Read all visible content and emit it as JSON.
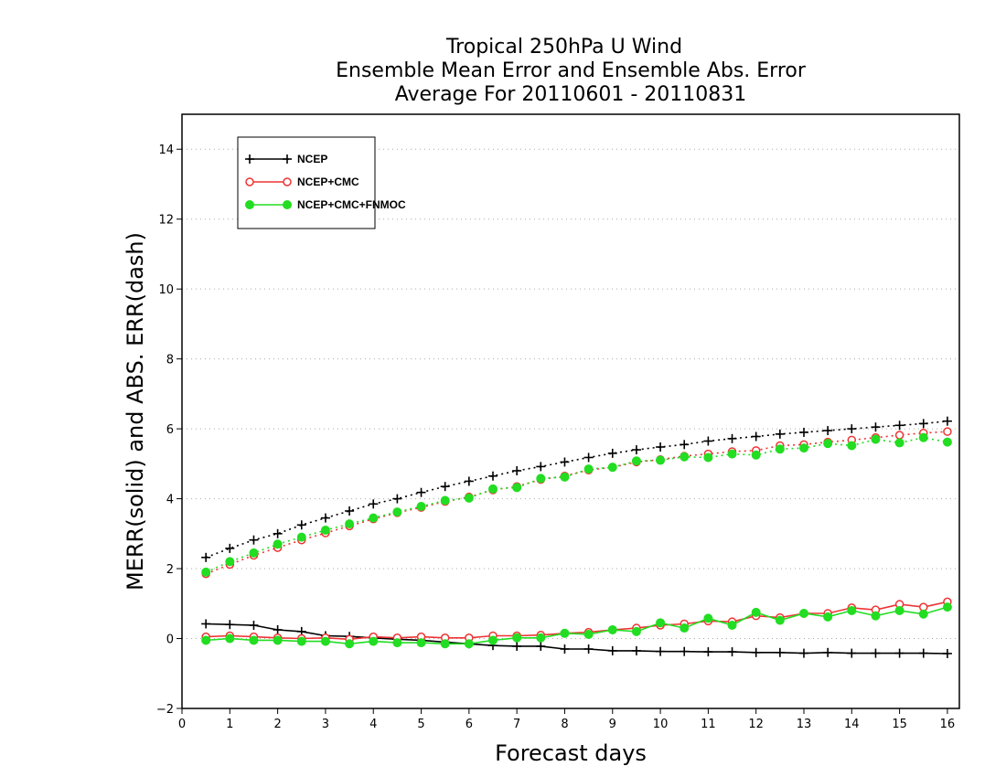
{
  "chart_data": {
    "type": "line",
    "title": [
      "Tropical 250hPa U Wind",
      "Ensemble Mean Error and Ensemble Abs. Error",
      "Average For 20110601 - 20110831"
    ],
    "xlabel": "Forecast days",
    "ylabel": "MERR(solid) and ABS. ERR(dash)",
    "xlim": [
      0,
      16.25
    ],
    "ylim": [
      -2,
      15
    ],
    "xticks": [
      0,
      1,
      2,
      3,
      4,
      5,
      6,
      7,
      8,
      9,
      10,
      11,
      12,
      13,
      14,
      15,
      16
    ],
    "yticks": [
      -2,
      0,
      2,
      4,
      6,
      8,
      10,
      12,
      14
    ],
    "ygrid": true,
    "legend_position": "top-left",
    "x": [
      0.5,
      1.0,
      1.5,
      2.0,
      2.5,
      3.0,
      3.5,
      4.0,
      4.5,
      5.0,
      5.5,
      6.0,
      6.5,
      7.0,
      7.5,
      8.0,
      8.5,
      9.0,
      9.5,
      10.0,
      10.5,
      11.0,
      11.5,
      12.0,
      12.5,
      13.0,
      13.5,
      14.0,
      14.5,
      15.0,
      15.5,
      16.0
    ],
    "series": [
      {
        "name": "NCEP",
        "color": "#000000",
        "marker": "plus",
        "merr": [
          0.42,
          0.4,
          0.38,
          0.25,
          0.2,
          0.08,
          0.06,
          0.02,
          -0.02,
          -0.05,
          -0.1,
          -0.15,
          -0.2,
          -0.22,
          -0.22,
          -0.3,
          -0.3,
          -0.35,
          -0.35,
          -0.37,
          -0.37,
          -0.38,
          -0.38,
          -0.4,
          -0.4,
          -0.42,
          -0.4,
          -0.42,
          -0.42,
          -0.42,
          -0.42,
          -0.43
        ],
        "abs_err": [
          2.32,
          2.58,
          2.82,
          3.0,
          3.25,
          3.45,
          3.65,
          3.85,
          4.0,
          4.18,
          4.35,
          4.5,
          4.65,
          4.8,
          4.92,
          5.05,
          5.18,
          5.3,
          5.4,
          5.48,
          5.55,
          5.65,
          5.72,
          5.78,
          5.85,
          5.9,
          5.95,
          6.0,
          6.05,
          6.1,
          6.15,
          6.22
        ]
      },
      {
        "name": "NCEP+CMC",
        "color": "#ee3333",
        "marker": "open-circle",
        "merr": [
          0.05,
          0.08,
          0.05,
          0.02,
          0.0,
          0.02,
          -0.02,
          0.05,
          0.02,
          0.05,
          0.02,
          0.02,
          0.08,
          0.08,
          0.1,
          0.15,
          0.18,
          0.25,
          0.3,
          0.38,
          0.42,
          0.5,
          0.48,
          0.65,
          0.6,
          0.72,
          0.72,
          0.88,
          0.82,
          0.98,
          0.9,
          1.05
        ],
        "abs_err": [
          1.85,
          2.12,
          2.38,
          2.6,
          2.82,
          3.02,
          3.22,
          3.42,
          3.6,
          3.75,
          3.92,
          4.05,
          4.25,
          4.35,
          4.55,
          4.65,
          4.82,
          4.9,
          5.05,
          5.12,
          5.22,
          5.28,
          5.35,
          5.38,
          5.52,
          5.55,
          5.62,
          5.68,
          5.75,
          5.82,
          5.88,
          5.92
        ]
      },
      {
        "name": "NCEP+CMC+FNMOC",
        "color": "#22dd22",
        "marker": "filled-circle",
        "merr": [
          -0.05,
          0.0,
          -0.05,
          -0.05,
          -0.08,
          -0.08,
          -0.15,
          -0.08,
          -0.12,
          -0.12,
          -0.15,
          -0.15,
          -0.05,
          0.02,
          0.02,
          0.15,
          0.12,
          0.25,
          0.2,
          0.45,
          0.3,
          0.58,
          0.38,
          0.75,
          0.52,
          0.72,
          0.62,
          0.8,
          0.65,
          0.8,
          0.7,
          0.9
        ],
        "abs_err": [
          1.9,
          2.2,
          2.45,
          2.7,
          2.9,
          3.1,
          3.28,
          3.45,
          3.62,
          3.78,
          3.95,
          4.02,
          4.28,
          4.32,
          4.58,
          4.62,
          4.85,
          4.9,
          5.08,
          5.1,
          5.2,
          5.18,
          5.28,
          5.25,
          5.42,
          5.45,
          5.58,
          5.52,
          5.7,
          5.6,
          5.75,
          5.62
        ]
      }
    ]
  }
}
